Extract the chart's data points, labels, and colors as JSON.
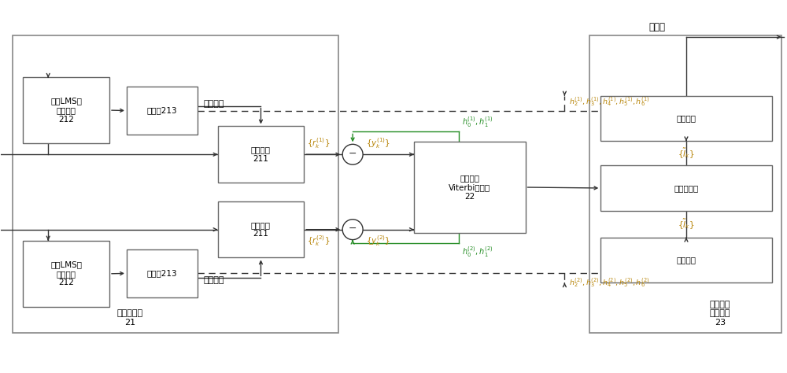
{
  "fig_width": 10.0,
  "fig_height": 4.74,
  "bg_color": "#ffffff",
  "box_edge_color": "#666666",
  "arrow_color": "#333333",
  "green_color": "#228B22",
  "orange_color": "#B8860B",
  "module21_label": "预滤波模块\n21",
  "module23_label": "反馈和硬\n判决模块\n23",
  "module22_label": "分数间隔\nViterbi译码器\n22",
  "lms_label": "第二LMS信\n道估计器\n212",
  "calc_label": "计算器213",
  "filter_label": "预滤波器\n211",
  "feedback_label": "反馈模块",
  "hard_dec_label": "硬判决模块",
  "soft_output_label": "软输出",
  "channel_response": "信道响应"
}
